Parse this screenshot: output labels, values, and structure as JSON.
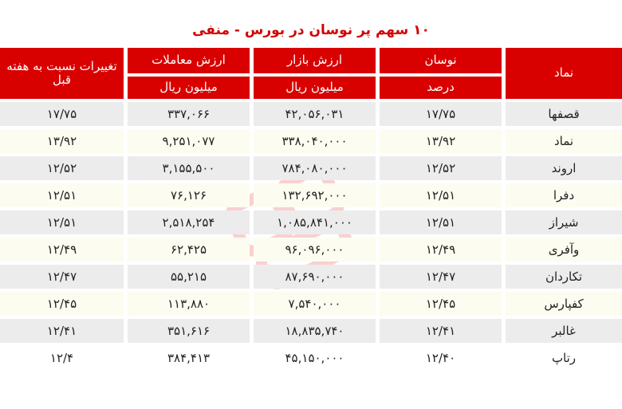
{
  "title": "۱۰ سهم پر نوسان در بورس - منفی",
  "headers": {
    "symbol": "نماد",
    "fluctuation": "نوسان",
    "fluctuation_unit": "درصد",
    "market_value": "ارزش بازار",
    "market_value_unit": "میلیون ریال",
    "trade_value": "ارزش معاملات",
    "trade_value_unit": "میلیون ریال",
    "weekly_change": "تغییرات نسبت به هفته قبل"
  },
  "rows": [
    {
      "symbol": "قصفها",
      "fluctuation": "۱۷/۷۵",
      "market_value": "۴۲,۰۵۶,۰۳۱",
      "trade_value": "۳۳۷,۰۶۶",
      "weekly_change": "۱۷/۷۵"
    },
    {
      "symbol": "نماد",
      "fluctuation": "۱۳/۹۲",
      "market_value": "۳۳۸,۰۴۰,۰۰۰",
      "trade_value": "۹,۲۵۱,۰۷۷",
      "weekly_change": "۱۳/۹۲"
    },
    {
      "symbol": "اروند",
      "fluctuation": "۱۲/۵۲",
      "market_value": "۷۸۴,۰۸۰,۰۰۰",
      "trade_value": "۳,۱۵۵,۵۰۰",
      "weekly_change": "۱۲/۵۲"
    },
    {
      "symbol": "دفرا",
      "fluctuation": "۱۲/۵۱",
      "market_value": "۱۳۲,۶۹۲,۰۰۰",
      "trade_value": "۷۶,۱۲۶",
      "weekly_change": "۱۲/۵۱"
    },
    {
      "symbol": "شیراز",
      "fluctuation": "۱۲/۵۱",
      "market_value": "۱,۰۸۵,۸۴۱,۰۰۰",
      "trade_value": "۲,۵۱۸,۲۵۴",
      "weekly_change": "۱۲/۵۱"
    },
    {
      "symbol": "وآفری",
      "fluctuation": "۱۲/۴۹",
      "market_value": "۹۶,۰۹۶,۰۰۰",
      "trade_value": "۶۲,۴۲۵",
      "weekly_change": "۱۲/۴۹"
    },
    {
      "symbol": "تکاردان",
      "fluctuation": "۱۲/۴۷",
      "market_value": "۸۷,۶۹۰,۰۰۰",
      "trade_value": "۵۵,۲۱۵",
      "weekly_change": "۱۲/۴۷"
    },
    {
      "symbol": "کفپارس",
      "fluctuation": "۱۲/۴۵",
      "market_value": "۷,۵۴۰,۰۰۰",
      "trade_value": "۱۱۳,۸۸۰",
      "weekly_change": "۱۲/۴۵"
    },
    {
      "symbol": "غالبر",
      "fluctuation": "۱۲/۴۱",
      "market_value": "۱۸,۸۳۵,۷۴۰",
      "trade_value": "۳۵۱,۶۱۶",
      "weekly_change": "۱۲/۴۱"
    },
    {
      "symbol": "رتاپ",
      "fluctuation": "۱۲/۴۰",
      "market_value": "۴۵,۱۵۰,۰۰۰",
      "trade_value": "۳۸۴,۴۱۳",
      "weekly_change": "۱۲/۴"
    }
  ],
  "watermark": "SEDAYE BOURSE",
  "colors": {
    "header_bg": "#d90000",
    "title": "#d40000",
    "row_gray": "#ececec",
    "row_cream": "#fcfcf0"
  }
}
